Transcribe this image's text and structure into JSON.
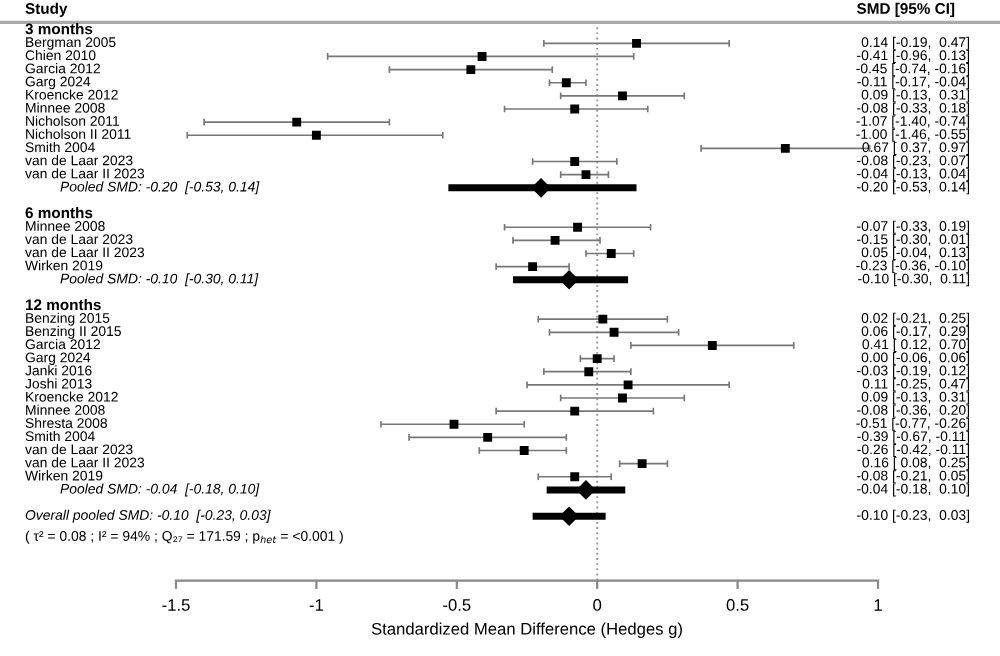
{
  "chart_data": {
    "type": "scatter",
    "orientation": "horizontal",
    "categories": [
      "3 months",
      "Bergman 2005",
      "Chien 2010",
      "Garcia 2012",
      "Garg 2024",
      "Kroencke 2012",
      "Minnee 2008",
      "Nicholson 2011",
      "Nicholson II 2011",
      "Smith 2004",
      "van de Laar 2023",
      "van de Laar II 2023",
      "Pooled SMD: -0.20  [-0.53, 0.14]",
      null,
      "6 months",
      "Minnee 2008",
      "van de Laar 2023",
      "van de Laar II 2023",
      "Wirken 2019",
      "Pooled SMD: -0.10  [-0.30, 0.11]",
      null,
      "12 months",
      "Benzing 2015",
      "Benzing II 2015",
      "Garcia 2012",
      "Garg 2024",
      "Janki 2016",
      "Joshi 2013",
      "Kroencke 2012",
      "Minnee 2008",
      "Shresta 2008",
      "Smith 2004",
      "van de Laar 2023",
      "van de Laar II 2023",
      "Wirken 2019",
      "Pooled SMD: -0.04  [-0.18, 0.10]",
      null,
      "Overall pooled SMD: -0.10  [-0.23, 0.03]"
    ],
    "series": [
      {
        "color": "#000000",
        "marker": "square",
        "values": [
          null,
          0.14,
          -0.41,
          -0.45,
          -0.11,
          0.09,
          -0.08,
          -1.07,
          -1.0,
          0.67,
          -0.08,
          -0.04,
          null,
          null,
          null,
          -0.07,
          -0.15,
          0.05,
          -0.23,
          null,
          null,
          null,
          0.02,
          0.06,
          0.41,
          0.0,
          -0.03,
          0.11,
          0.09,
          -0.08,
          -0.51,
          -0.39,
          -0.26,
          0.16,
          -0.08,
          null,
          null,
          null
        ],
        "errors": [
          null,
          [
            -0.19,
            0.47
          ],
          [
            -0.96,
            0.13
          ],
          [
            -0.74,
            -0.16
          ],
          [
            -0.17,
            -0.04
          ],
          [
            -0.13,
            0.31
          ],
          [
            -0.33,
            0.18
          ],
          [
            -1.4,
            -0.74
          ],
          [
            -1.46,
            -0.55
          ],
          [
            0.37,
            0.97
          ],
          [
            -0.23,
            0.07
          ],
          [
            -0.13,
            0.04
          ],
          null,
          null,
          null,
          [
            -0.33,
            0.19
          ],
          [
            -0.3,
            0.01
          ],
          [
            -0.04,
            0.13
          ],
          [
            -0.36,
            -0.1
          ],
          null,
          null,
          null,
          [
            -0.21,
            0.25
          ],
          [
            -0.17,
            0.29
          ],
          [
            0.12,
            0.7
          ],
          [
            -0.06,
            0.06
          ],
          [
            -0.19,
            0.12
          ],
          [
            -0.25,
            0.47
          ],
          [
            -0.13,
            0.31
          ],
          [
            -0.36,
            0.2
          ],
          [
            -0.77,
            -0.26
          ],
          [
            -0.67,
            -0.11
          ],
          [
            -0.42,
            -0.11
          ],
          [
            0.08,
            0.25
          ],
          [
            -0.21,
            0.05
          ],
          null,
          null,
          null
        ],
        "value_labels": [
          null,
          "0.14 [-0.19,  0.47]",
          "-0.41 [-0.96,  0.13]",
          "-0.45 [-0.74, -0.16]",
          "-0.11 [-0.17, -0.04]",
          "0.09 [-0.13,  0.31]",
          "-0.08 [-0.33,  0.18]",
          "-1.07 [-1.40, -0.74]",
          "-1.00 [-1.46, -0.55]",
          "0.67 [ 0.37,  0.97]",
          "-0.08 [-0.23,  0.07]",
          "-0.04 [-0.13,  0.04]",
          null,
          null,
          null,
          "-0.07 [-0.33,  0.19]",
          "-0.15 [-0.30,  0.01]",
          "0.05 [-0.04,  0.13]",
          "-0.23 [-0.36, -0.10]",
          null,
          null,
          null,
          "0.02 [-0.21,  0.25]",
          "0.06 [-0.17,  0.29]",
          "0.41 [ 0.12,  0.70]",
          "0.00 [-0.06,  0.06]",
          "-0.03 [-0.19,  0.12]",
          "0.11 [-0.25,  0.47]",
          "0.09 [-0.13,  0.31]",
          "-0.08 [-0.36,  0.20]",
          "-0.51 [-0.77, -0.26]",
          "-0.39 [-0.67, -0.11]",
          "-0.26 [-0.42, -0.11]",
          "0.16 [ 0.08,  0.25]",
          "-0.08 [-0.21,  0.05]",
          null,
          null,
          null
        ]
      },
      {
        "color": "#000000",
        "marker": "diamond",
        "values": [
          null,
          null,
          null,
          null,
          null,
          null,
          null,
          null,
          null,
          null,
          null,
          null,
          -0.2,
          null,
          null,
          null,
          null,
          null,
          null,
          -0.1,
          null,
          null,
          null,
          null,
          null,
          null,
          null,
          null,
          null,
          null,
          null,
          null,
          null,
          null,
          null,
          -0.04,
          null,
          -0.1
        ],
        "errors": [
          null,
          null,
          null,
          null,
          null,
          null,
          null,
          null,
          null,
          null,
          null,
          null,
          [
            -0.53,
            0.14
          ],
          null,
          null,
          null,
          null,
          null,
          null,
          [
            -0.3,
            0.11
          ],
          null,
          null,
          null,
          null,
          null,
          null,
          null,
          null,
          null,
          null,
          null,
          null,
          null,
          null,
          null,
          [
            -0.18,
            0.1
          ],
          null,
          [
            -0.23,
            0.03
          ]
        ]
      }
    ],
    "xlim": [
      -1.5,
      1
    ],
    "xticks": [
      -1.5,
      -1,
      -0.5,
      0,
      0.5,
      1
    ],
    "xlabel": "Standardized Mean Difference (Hedges g)",
    "ref_lines": [
      {
        "axis": "x",
        "value": 0,
        "color": "#999999",
        "line_style": "dotted"
      }
    ],
    "grid": false,
    "annotations": [
      "Study",
      "SMD [95% CI]",
      "( τ² = 0.08 ; I² = 94% ; Q₂₇ = 171.59 ; p$_{het}$ = <0.001 )",
      "-0.20 [-0.53,  0.14]",
      "-0.10 [-0.30,  0.11]",
      "-0.04 [-0.18,  0.10]",
      "-0.10 [-0.23,  0.03]"
    ]
  }
}
